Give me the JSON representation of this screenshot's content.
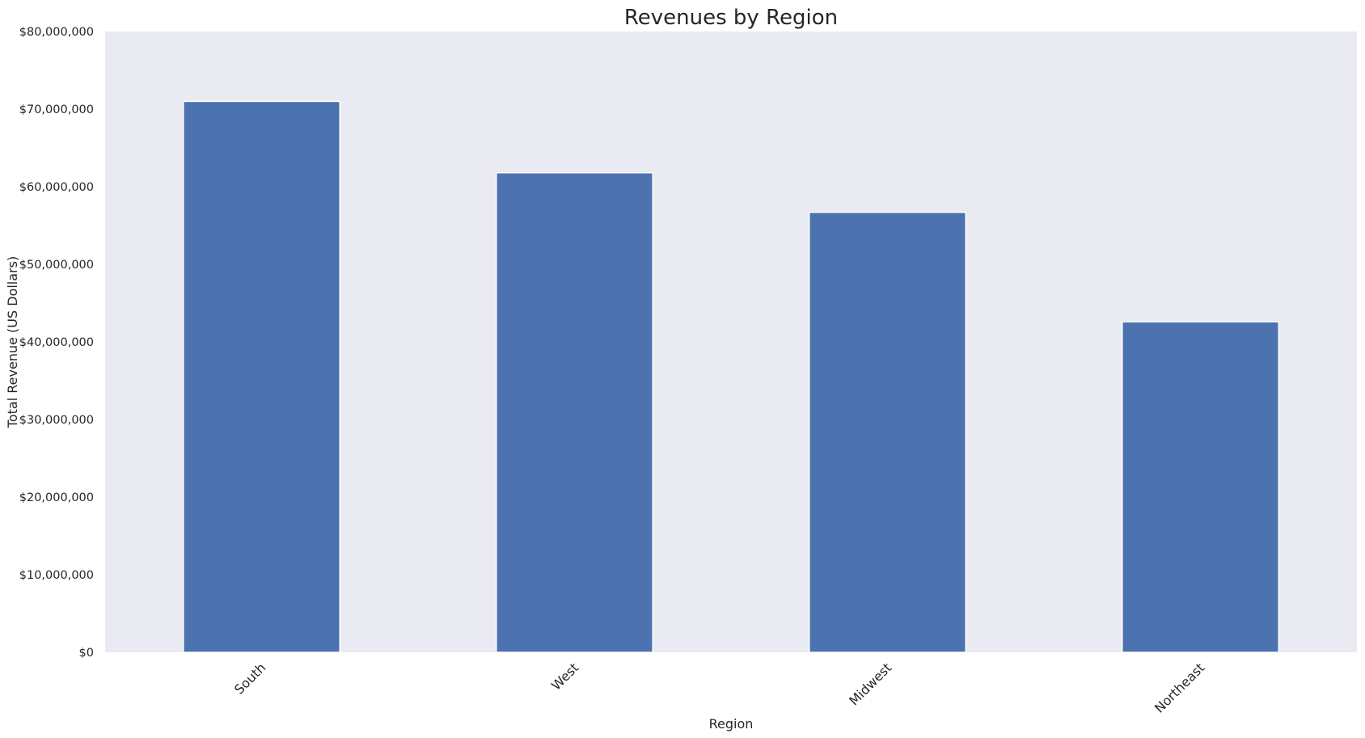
{
  "chart_data": {
    "type": "bar",
    "title": "Revenues by Region",
    "xlabel": "Region",
    "ylabel": "Total Revenue (US Dollars)",
    "categories": [
      "South",
      "West",
      "Midwest",
      "Northeast"
    ],
    "values": [
      71000000,
      61800000,
      56700000,
      42600000
    ],
    "ylim": [
      0,
      80000000
    ],
    "yticks": [
      0,
      10000000,
      20000000,
      30000000,
      40000000,
      50000000,
      60000000,
      70000000,
      80000000
    ],
    "ytick_labels": [
      "$0",
      "$10,000,000",
      "$20,000,000",
      "$30,000,000",
      "$40,000,000",
      "$50,000,000",
      "$60,000,000",
      "$70,000,000",
      "$80,000,000"
    ],
    "xtick_rotation": 45,
    "grid": false,
    "legend": "none",
    "colors": {
      "bar": "#4c72b0",
      "plot_background": "#eaeaf2",
      "text": "#262626"
    }
  }
}
